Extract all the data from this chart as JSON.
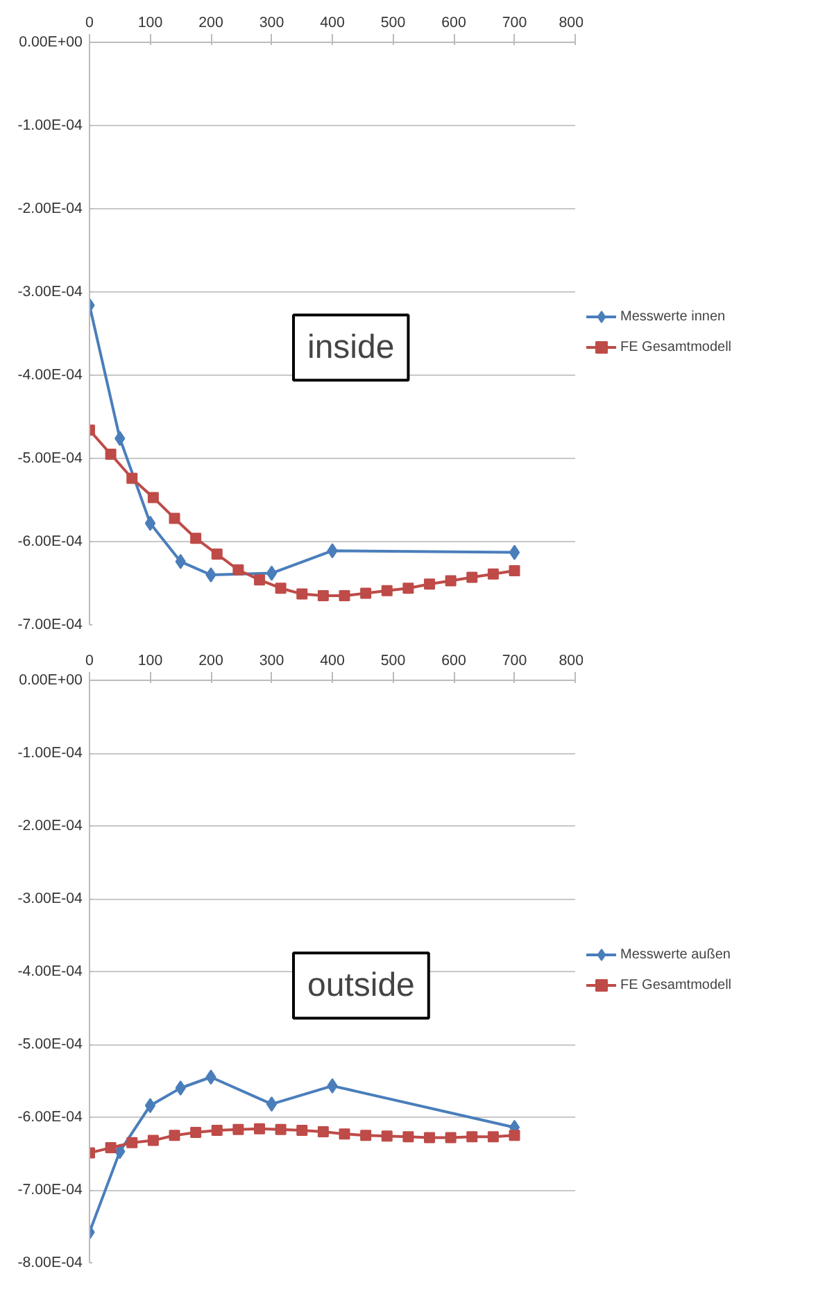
{
  "chart_data": [
    {
      "type": "line",
      "annotations": [
        "inside"
      ],
      "legend": "right",
      "grid": "y",
      "line_style": "solid",
      "xlim": [
        0,
        800
      ],
      "xticks": [
        0,
        100,
        200,
        300,
        400,
        500,
        600,
        700,
        800
      ],
      "ylim": [
        -0.0007,
        0
      ],
      "yticks": [
        {
          "value": 0,
          "label": "0.00E+00"
        },
        {
          "value": -0.0001,
          "label": "-1.00E-04"
        },
        {
          "value": -0.0002,
          "label": "-2.00E-04"
        },
        {
          "value": -0.0003,
          "label": "-3.00E-04"
        },
        {
          "value": -0.0004,
          "label": "-4.00E-04"
        },
        {
          "value": -0.0005,
          "label": "-5.00E-04"
        },
        {
          "value": -0.0006,
          "label": "-6.00E-04"
        },
        {
          "value": -0.0007,
          "label": "-7.00E-04"
        }
      ],
      "series": [
        {
          "name": "Messwerte innen",
          "color": "#4a7ebb",
          "marker": "diamond",
          "x": [
            0,
            50,
            100,
            150,
            200,
            300,
            400,
            700
          ],
          "values": [
            -0.000316,
            -0.000476,
            -0.000578,
            -0.000624,
            -0.00064,
            -0.000638,
            -0.000611,
            -0.000613
          ]
        },
        {
          "name": "FE Gesamtmodell",
          "color": "#be4b48",
          "marker": "square",
          "x": [
            0,
            35,
            70,
            105,
            140,
            175,
            210,
            245,
            280,
            315,
            350,
            385,
            420,
            455,
            490,
            525,
            560,
            595,
            630,
            665,
            700
          ],
          "values": [
            -0.000466,
            -0.000495,
            -0.000524,
            -0.000547,
            -0.000572,
            -0.000596,
            -0.000615,
            -0.000634,
            -0.000646,
            -0.000656,
            -0.000663,
            -0.000665,
            -0.000665,
            -0.000662,
            -0.000659,
            -0.000656,
            -0.000651,
            -0.000647,
            -0.000643,
            -0.000639,
            -0.000635
          ]
        }
      ]
    },
    {
      "type": "line",
      "annotations": [
        "outside"
      ],
      "legend": "right",
      "grid": "y",
      "line_style": "solid",
      "xlim": [
        0,
        800
      ],
      "xticks": [
        0,
        100,
        200,
        300,
        400,
        500,
        600,
        700,
        800
      ],
      "ylim": [
        -0.0008,
        0
      ],
      "yticks": [
        {
          "value": 0,
          "label": "0.00E+00"
        },
        {
          "value": -0.0001,
          "label": "-1.00E-04"
        },
        {
          "value": -0.0002,
          "label": "-2.00E-04"
        },
        {
          "value": -0.0003,
          "label": "-3.00E-04"
        },
        {
          "value": -0.0004,
          "label": "-4.00E-04"
        },
        {
          "value": -0.0005,
          "label": "-5.00E-04"
        },
        {
          "value": -0.0006,
          "label": "-6.00E-04"
        },
        {
          "value": -0.0007,
          "label": "-7.00E-04"
        },
        {
          "value": -0.0008,
          "label": "-8.00E-04"
        }
      ],
      "series": [
        {
          "name": "Messwerte außen",
          "color": "#4a7ebb",
          "marker": "diamond",
          "x": [
            0,
            50,
            100,
            150,
            200,
            300,
            400,
            700
          ],
          "values": [
            -0.000758,
            -0.000647,
            -0.000584,
            -0.00056,
            -0.000545,
            -0.000582,
            -0.000557,
            -0.000614
          ]
        },
        {
          "name": "FE Gesamtmodell",
          "color": "#be4b48",
          "marker": "square",
          "x": [
            0,
            35,
            70,
            105,
            140,
            175,
            210,
            245,
            280,
            315,
            350,
            385,
            420,
            455,
            490,
            525,
            560,
            595,
            630,
            665,
            700
          ],
          "values": [
            -0.000649,
            -0.000642,
            -0.000635,
            -0.000632,
            -0.000625,
            -0.000621,
            -0.000618,
            -0.000617,
            -0.000616,
            -0.000617,
            -0.000618,
            -0.00062,
            -0.000623,
            -0.000625,
            -0.000626,
            -0.000627,
            -0.000628,
            -0.000628,
            -0.000627,
            -0.000627,
            -0.000625
          ]
        }
      ]
    }
  ]
}
